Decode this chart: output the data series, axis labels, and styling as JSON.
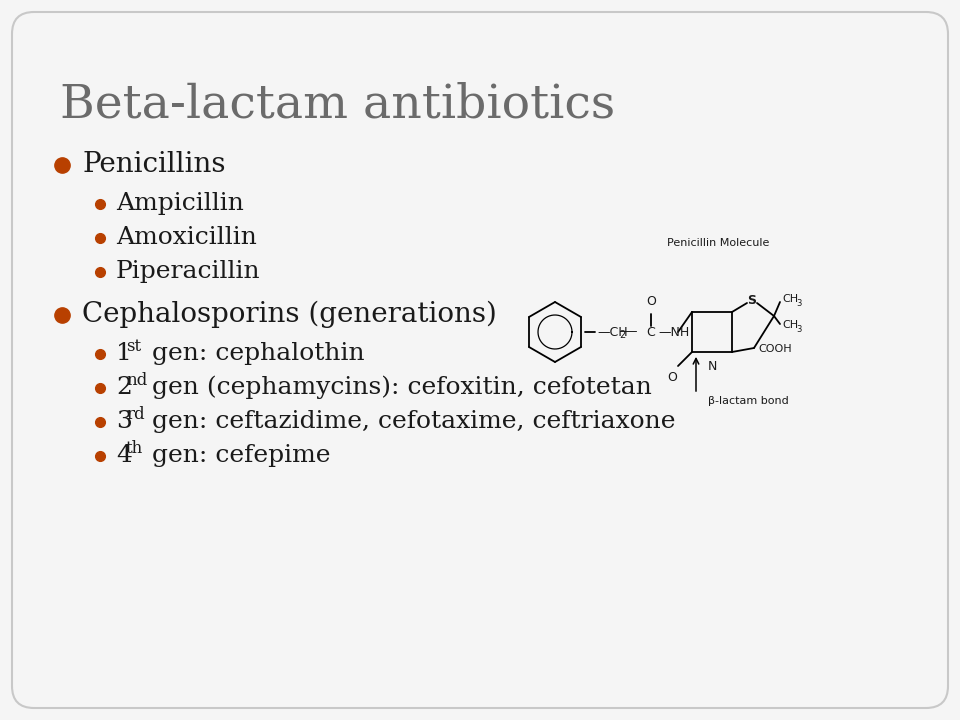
{
  "title": "Beta-lactam antibiotics",
  "title_color": "#6b6b6b",
  "title_fontsize": 34,
  "background_color": "#f5f5f5",
  "border_color": "#c8c8c8",
  "bullet_color": "#b84000",
  "bullet2_penicillin": [
    "Ampicillin",
    "Amoxicillin",
    "Piperacillin"
  ],
  "bullet1_ceph": "Cephalosporins (generations)",
  "bullet2_ceph": [
    [
      "1",
      "st",
      " gen: cephalothin"
    ],
    [
      "2",
      "nd",
      " gen (cephamycins): cefoxitin, cefotetan"
    ],
    [
      "3",
      "rd",
      " gen: ceftazidime, cefotaxime, ceftriaxone"
    ],
    [
      "4",
      "th",
      " gen: cefepime"
    ]
  ],
  "mol_label": "Penicillin Molecule",
  "bond_label": "β-lactam bond",
  "text_color": "#1a1a1a",
  "body_fontsize": 20,
  "sub_fontsize": 18,
  "mol_fontsize": 9
}
